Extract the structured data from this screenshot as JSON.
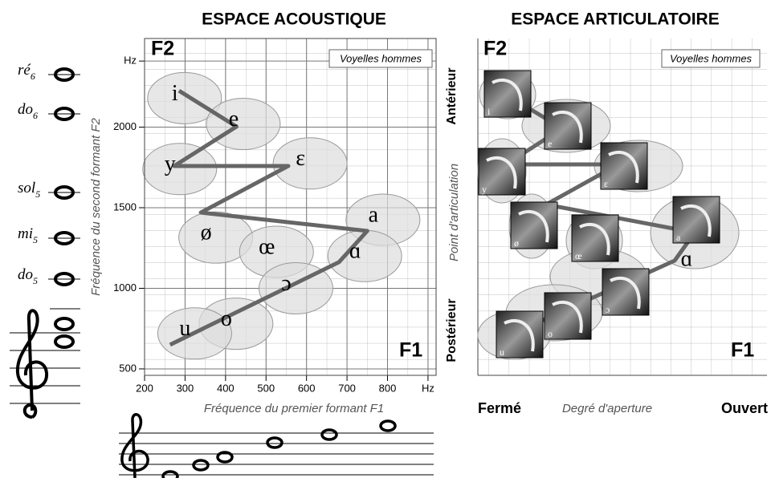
{
  "chart_data": {
    "type": "line",
    "title": "ESPACE ACOUSTIQUE",
    "corner_label": "F2",
    "x_corner_label": "F1",
    "legend_box": "Voyelles hommes",
    "xlabel": "Fréquence du premier formant F1",
    "ylabel": "Fréquence du second formant F2",
    "xlim": [
      200,
      920
    ],
    "ylim": [
      460,
      2550
    ],
    "xticks": [
      200,
      300,
      400,
      500,
      600,
      700,
      800,
      {
        "value": 900,
        "label": "Hz"
      }
    ],
    "yticks": [
      500,
      1000,
      1500,
      2000,
      {
        "value": 2410,
        "label": "Hz"
      }
    ],
    "grid": true,
    "color": "#666",
    "vowels": {
      "labels": [
        "i",
        "e",
        "y",
        "ɛ",
        "ø",
        "œ",
        "a",
        "ɑ",
        "ɔ",
        "o",
        "u"
      ],
      "x": [
        275,
        420,
        263,
        585,
        352,
        502,
        765,
        720,
        550,
        402,
        300
      ],
      "y": [
        2200,
        2040,
        1760,
        1795,
        1335,
        1246,
        1445,
        1220,
        1020,
        800,
        740
      ]
    },
    "x": [
      285,
      427,
      273,
      555,
      339,
      750,
      680,
      263
    ],
    "y": [
      2226,
      2003,
      1759,
      1759,
      1470,
      1356,
      1162,
      650
    ]
  },
  "articulatory": {
    "title": "ESPACE ARTICULATOIRE",
    "corner_label": "F2",
    "x_corner_label": "F1",
    "legend_box": "Voyelles hommes",
    "y_top": "Antérieur",
    "y_mid": "Point d'articulation",
    "y_bottom": "Postérieur",
    "x_left": "Fermé",
    "x_mid": "Degré d'aperture",
    "x_right": "Ouvert",
    "vowels": [
      "i",
      "e",
      "y",
      "ɛ",
      "ø",
      "œ",
      "a",
      "ɑ",
      "ɔ",
      "o",
      "u"
    ]
  },
  "notes": [
    {
      "name": "ré",
      "octave": "6"
    },
    {
      "name": "do",
      "octave": "6"
    },
    {
      "name": "sol",
      "octave": "5"
    },
    {
      "name": "mi",
      "octave": "5"
    },
    {
      "name": "do",
      "octave": "5"
    }
  ]
}
